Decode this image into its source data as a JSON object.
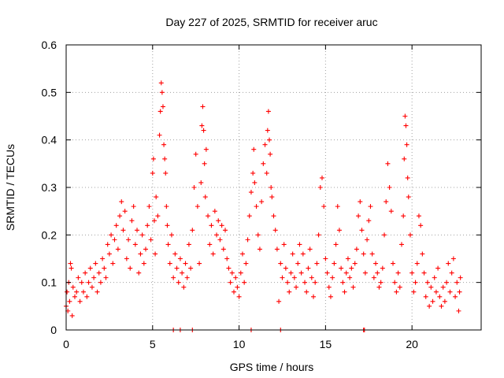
{
  "chart_data": {
    "type": "scatter",
    "title": "Day 227 of 2025, SRMTID for receiver aruc",
    "xlabel": "GPS time / hours",
    "ylabel": "SRMTID / TECUs",
    "xlim": [
      0,
      24
    ],
    "ylim": [
      0,
      0.6
    ],
    "xticks": [
      0,
      5,
      10,
      15,
      20
    ],
    "xtick_labels": [
      "0",
      "5",
      "10",
      "15",
      "20"
    ],
    "yticks": [
      0,
      0.1,
      0.2,
      0.3,
      0.4,
      0.5,
      0.6
    ],
    "ytick_labels": [
      "0",
      "0.1",
      "0.2",
      "0.3",
      "0.4",
      "0.5",
      "0.6"
    ],
    "grid": true,
    "marker": "plus",
    "color": "#ff0000",
    "series": [
      {
        "name": "SRMTID",
        "points": [
          [
            0.0,
            0.05
          ],
          [
            0.05,
            0.08
          ],
          [
            0.1,
            0.04
          ],
          [
            0.15,
            0.1
          ],
          [
            0.2,
            0.06
          ],
          [
            0.25,
            0.14
          ],
          [
            0.3,
            0.13
          ],
          [
            0.35,
            0.03
          ],
          [
            0.4,
            0.09
          ],
          [
            0.5,
            0.07
          ],
          [
            0.6,
            0.08
          ],
          [
            0.7,
            0.11
          ],
          [
            0.8,
            0.06
          ],
          [
            0.9,
            0.1
          ],
          [
            1.0,
            0.08
          ],
          [
            1.1,
            0.12
          ],
          [
            1.2,
            0.07
          ],
          [
            1.3,
            0.1
          ],
          [
            1.4,
            0.13
          ],
          [
            1.5,
            0.09
          ],
          [
            1.6,
            0.11
          ],
          [
            1.7,
            0.14
          ],
          [
            1.8,
            0.08
          ],
          [
            1.9,
            0.12
          ],
          [
            2.0,
            0.1
          ],
          [
            2.1,
            0.15
          ],
          [
            2.2,
            0.13
          ],
          [
            2.3,
            0.11
          ],
          [
            2.4,
            0.18
          ],
          [
            2.5,
            0.16
          ],
          [
            2.6,
            0.2
          ],
          [
            2.7,
            0.14
          ],
          [
            2.8,
            0.19
          ],
          [
            2.9,
            0.22
          ],
          [
            3.0,
            0.17
          ],
          [
            3.1,
            0.24
          ],
          [
            3.2,
            0.27
          ],
          [
            3.3,
            0.21
          ],
          [
            3.4,
            0.25
          ],
          [
            3.5,
            0.15
          ],
          [
            3.6,
            0.19
          ],
          [
            3.7,
            0.13
          ],
          [
            3.8,
            0.23
          ],
          [
            3.9,
            0.26
          ],
          [
            4.0,
            0.18
          ],
          [
            4.1,
            0.21
          ],
          [
            4.2,
            0.12
          ],
          [
            4.3,
            0.16
          ],
          [
            4.4,
            0.2
          ],
          [
            4.5,
            0.14
          ],
          [
            4.6,
            0.17
          ],
          [
            4.7,
            0.22
          ],
          [
            4.8,
            0.26
          ],
          [
            4.9,
            0.19
          ],
          [
            5.0,
            0.33
          ],
          [
            5.05,
            0.36
          ],
          [
            5.1,
            0.23
          ],
          [
            5.15,
            0.16
          ],
          [
            5.2,
            0.28
          ],
          [
            5.3,
            0.24
          ],
          [
            5.4,
            0.41
          ],
          [
            5.45,
            0.46
          ],
          [
            5.5,
            0.52
          ],
          [
            5.55,
            0.5
          ],
          [
            5.6,
            0.47
          ],
          [
            5.65,
            0.39
          ],
          [
            5.7,
            0.36
          ],
          [
            5.75,
            0.33
          ],
          [
            5.8,
            0.26
          ],
          [
            5.85,
            0.22
          ],
          [
            5.9,
            0.18
          ],
          [
            6.0,
            0.14
          ],
          [
            6.1,
            0.2
          ],
          [
            6.2,
            0.11
          ],
          [
            6.3,
            0.16
          ],
          [
            6.4,
            0.13
          ],
          [
            6.5,
            0.1
          ],
          [
            6.6,
            0.15
          ],
          [
            6.7,
            0.12
          ],
          [
            6.8,
            0.09
          ],
          [
            6.9,
            0.14
          ],
          [
            7.0,
            0.11
          ],
          [
            7.1,
            0.18
          ],
          [
            7.2,
            0.13
          ],
          [
            7.3,
            0.21
          ],
          [
            7.4,
            0.3
          ],
          [
            7.5,
            0.37
          ],
          [
            7.6,
            0.26
          ],
          [
            7.7,
            0.14
          ],
          [
            7.8,
            0.31
          ],
          [
            7.85,
            0.43
          ],
          [
            7.9,
            0.47
          ],
          [
            7.95,
            0.42
          ],
          [
            8.0,
            0.35
          ],
          [
            8.05,
            0.28
          ],
          [
            8.1,
            0.38
          ],
          [
            8.2,
            0.24
          ],
          [
            8.3,
            0.18
          ],
          [
            8.4,
            0.22
          ],
          [
            8.5,
            0.16
          ],
          [
            8.6,
            0.25
          ],
          [
            8.7,
            0.2
          ],
          [
            8.8,
            0.23
          ],
          [
            8.9,
            0.19
          ],
          [
            9.0,
            0.22
          ],
          [
            9.1,
            0.17
          ],
          [
            9.2,
            0.21
          ],
          [
            9.3,
            0.15
          ],
          [
            9.4,
            0.13
          ],
          [
            9.5,
            0.1
          ],
          [
            9.6,
            0.12
          ],
          [
            9.7,
            0.08
          ],
          [
            9.8,
            0.11
          ],
          [
            9.9,
            0.09
          ],
          [
            10.0,
            0.07
          ],
          [
            10.1,
            0.12
          ],
          [
            10.2,
            0.16
          ],
          [
            10.3,
            0.1
          ],
          [
            10.4,
            0.14
          ],
          [
            10.5,
            0.19
          ],
          [
            10.6,
            0.24
          ],
          [
            10.7,
            0.29
          ],
          [
            10.8,
            0.33
          ],
          [
            10.85,
            0.38
          ],
          [
            10.9,
            0.31
          ],
          [
            11.0,
            0.26
          ],
          [
            11.1,
            0.2
          ],
          [
            11.2,
            0.17
          ],
          [
            11.3,
            0.27
          ],
          [
            11.4,
            0.35
          ],
          [
            11.5,
            0.39
          ],
          [
            11.6,
            0.33
          ],
          [
            11.65,
            0.42
          ],
          [
            11.7,
            0.46
          ],
          [
            11.75,
            0.4
          ],
          [
            11.8,
            0.37
          ],
          [
            11.85,
            0.3
          ],
          [
            11.9,
            0.28
          ],
          [
            12.0,
            0.24
          ],
          [
            12.1,
            0.21
          ],
          [
            12.2,
            0.17
          ],
          [
            12.3,
            0.06
          ],
          [
            12.4,
            0.14
          ],
          [
            12.5,
            0.11
          ],
          [
            12.6,
            0.18
          ],
          [
            12.7,
            0.13
          ],
          [
            12.8,
            0.1
          ],
          [
            12.9,
            0.08
          ],
          [
            13.0,
            0.12
          ],
          [
            13.1,
            0.16
          ],
          [
            13.2,
            0.11
          ],
          [
            13.3,
            0.09
          ],
          [
            13.4,
            0.14
          ],
          [
            13.5,
            0.18
          ],
          [
            13.6,
            0.12
          ],
          [
            13.7,
            0.16
          ],
          [
            13.8,
            0.1
          ],
          [
            13.9,
            0.08
          ],
          [
            14.0,
            0.13
          ],
          [
            14.1,
            0.17
          ],
          [
            14.2,
            0.11
          ],
          [
            14.3,
            0.07
          ],
          [
            14.4,
            0.1
          ],
          [
            14.5,
            0.14
          ],
          [
            14.6,
            0.2
          ],
          [
            14.7,
            0.3
          ],
          [
            14.8,
            0.32
          ],
          [
            14.9,
            0.26
          ],
          [
            15.0,
            0.15
          ],
          [
            15.1,
            0.12
          ],
          [
            15.2,
            0.09
          ],
          [
            15.3,
            0.07
          ],
          [
            15.4,
            0.11
          ],
          [
            15.5,
            0.14
          ],
          [
            15.6,
            0.18
          ],
          [
            15.7,
            0.26
          ],
          [
            15.8,
            0.21
          ],
          [
            15.9,
            0.13
          ],
          [
            16.0,
            0.1
          ],
          [
            16.1,
            0.08
          ],
          [
            16.2,
            0.12
          ],
          [
            16.3,
            0.15
          ],
          [
            16.4,
            0.11
          ],
          [
            16.5,
            0.13
          ],
          [
            16.6,
            0.09
          ],
          [
            16.7,
            0.14
          ],
          [
            16.8,
            0.17
          ],
          [
            16.9,
            0.24
          ],
          [
            17.0,
            0.27
          ],
          [
            17.1,
            0.21
          ],
          [
            17.2,
            0.16
          ],
          [
            17.3,
            0.12
          ],
          [
            17.4,
            0.19
          ],
          [
            17.5,
            0.23
          ],
          [
            17.6,
            0.26
          ],
          [
            17.7,
            0.16
          ],
          [
            17.8,
            0.11
          ],
          [
            17.9,
            0.14
          ],
          [
            18.0,
            0.12
          ],
          [
            18.1,
            0.09
          ],
          [
            18.2,
            0.1
          ],
          [
            18.3,
            0.13
          ],
          [
            18.4,
            0.2
          ],
          [
            18.5,
            0.27
          ],
          [
            18.6,
            0.35
          ],
          [
            18.7,
            0.3
          ],
          [
            18.8,
            0.25
          ],
          [
            18.9,
            0.14
          ],
          [
            19.0,
            0.1
          ],
          [
            19.1,
            0.08
          ],
          [
            19.2,
            0.12
          ],
          [
            19.3,
            0.09
          ],
          [
            19.4,
            0.18
          ],
          [
            19.5,
            0.24
          ],
          [
            19.55,
            0.36
          ],
          [
            19.6,
            0.45
          ],
          [
            19.65,
            0.43
          ],
          [
            19.7,
            0.39
          ],
          [
            19.75,
            0.32
          ],
          [
            19.8,
            0.28
          ],
          [
            19.9,
            0.2
          ],
          [
            20.0,
            0.12
          ],
          [
            20.1,
            0.08
          ],
          [
            20.2,
            0.1
          ],
          [
            20.3,
            0.14
          ],
          [
            20.4,
            0.24
          ],
          [
            20.5,
            0.22
          ],
          [
            20.6,
            0.16
          ],
          [
            20.7,
            0.12
          ],
          [
            20.8,
            0.07
          ],
          [
            20.9,
            0.1
          ],
          [
            21.0,
            0.05
          ],
          [
            21.1,
            0.09
          ],
          [
            21.2,
            0.06
          ],
          [
            21.3,
            0.11
          ],
          [
            21.4,
            0.08
          ],
          [
            21.5,
            0.13
          ],
          [
            21.6,
            0.07
          ],
          [
            21.7,
            0.05
          ],
          [
            21.8,
            0.09
          ],
          [
            21.9,
            0.06
          ],
          [
            22.0,
            0.1
          ],
          [
            22.1,
            0.14
          ],
          [
            22.2,
            0.08
          ],
          [
            22.3,
            0.12
          ],
          [
            22.4,
            0.15
          ],
          [
            22.5,
            0.07
          ],
          [
            22.6,
            0.1
          ],
          [
            22.7,
            0.04
          ],
          [
            22.75,
            0.08
          ],
          [
            22.8,
            0.11
          ],
          [
            6.2,
            0.0
          ],
          [
            6.6,
            0.0
          ],
          [
            7.3,
            0.0
          ],
          [
            10.7,
            0.0
          ],
          [
            12.4,
            0.0
          ],
          [
            17.2,
            0.0
          ],
          [
            17.25,
            0.0
          ]
        ]
      }
    ]
  }
}
